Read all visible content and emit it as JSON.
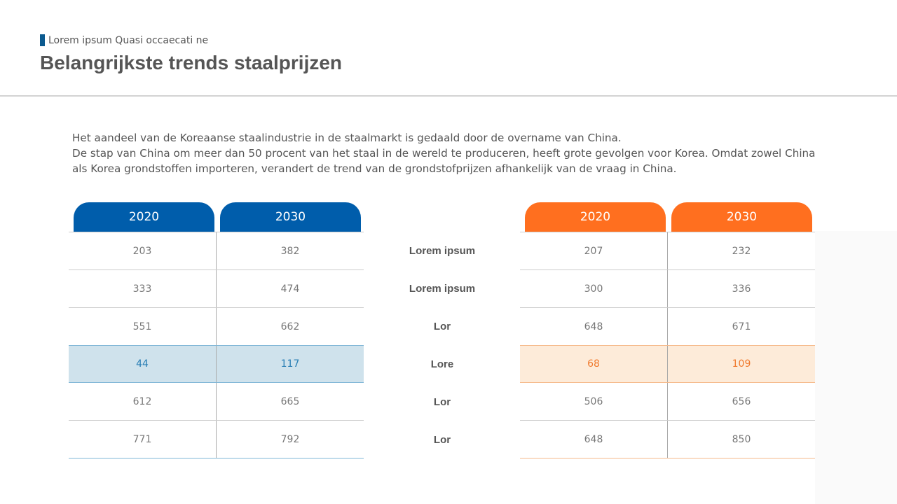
{
  "header": {
    "subtitle": "Lorem ipsum Quasi occaecati ne",
    "title": "Belangrijkste trends staalprijzen"
  },
  "description": [
    "Het aandeel van de Koreaanse staalindustrie in de staalmarkt is gedaald door de overname van China.",
    "De stap van China om meer dan 50 procent van het staal in de wereld te produceren, heeft grote gevolgen voor Korea. Omdat zowel China als Korea grondstoffen importeren, verandert de trend van de grondstofprijzen afhankelijk van de vraag in China."
  ],
  "colors": {
    "blue": "#005dab",
    "orange": "#ff6f1f",
    "blue_highlight": "#cfe2ec",
    "orange_highlight": "#fdebd9"
  },
  "row_labels": [
    "Lorem ipsum",
    "Lorem ipsum",
    "Lor",
    "Lore",
    "Lor",
    "Lor"
  ],
  "left_table": {
    "headers": [
      "2020",
      "2030"
    ],
    "rows": [
      [
        "203",
        "382"
      ],
      [
        "333",
        "474"
      ],
      [
        "551",
        "662"
      ],
      [
        "44",
        "117"
      ],
      [
        "612",
        "665"
      ],
      [
        "771",
        "792"
      ]
    ],
    "highlight_row": 3
  },
  "right_table": {
    "headers": [
      "2020",
      "2030"
    ],
    "rows": [
      [
        "207",
        "232"
      ],
      [
        "300",
        "336"
      ],
      [
        "648",
        "671"
      ],
      [
        "68",
        "109"
      ],
      [
        "506",
        "656"
      ],
      [
        "648",
        "850"
      ]
    ],
    "highlight_row": 3
  }
}
